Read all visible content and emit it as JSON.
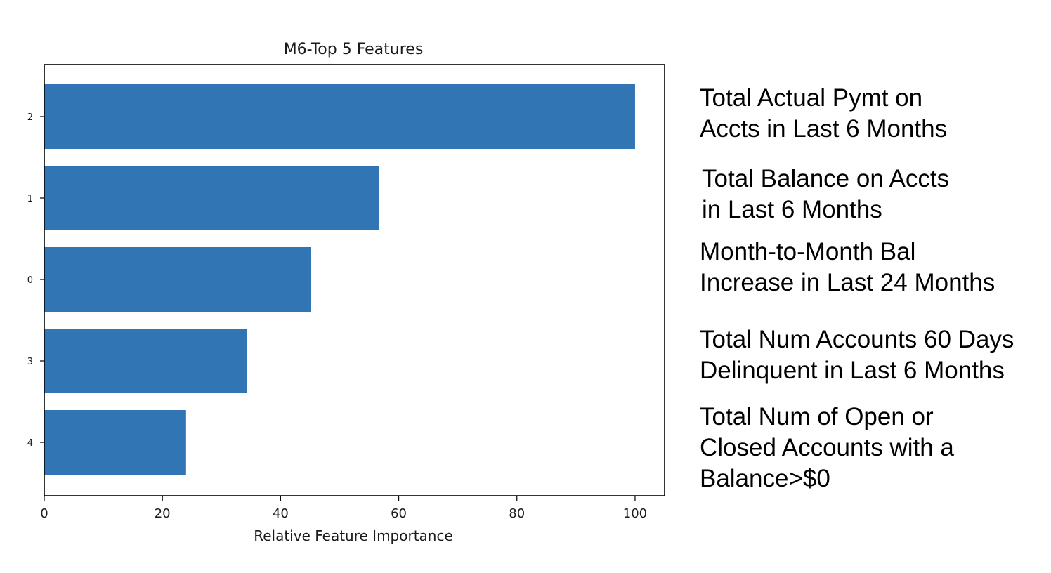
{
  "chart_data": {
    "type": "bar",
    "orientation": "horizontal",
    "title": "M6-Top 5 Features",
    "xlabel": "Relative Feature Importance",
    "ylabel": "",
    "xlim": [
      0,
      105
    ],
    "x_ticks": [
      0,
      20,
      40,
      60,
      80,
      100
    ],
    "categories": [
      "2",
      "1",
      "0",
      "3",
      "4"
    ],
    "values": [
      100,
      56.7,
      45.1,
      34.3,
      24.0
    ],
    "bar_color": "#3175b4",
    "grid": false,
    "legend": "none"
  },
  "annotations": [
    [
      "Total Actual Pymt on",
      "Accts in Last 6 Months"
    ],
    [
      "Total Balance on Accts",
      "in Last 6 Months"
    ],
    [
      "Month-to-Month Bal",
      "Increase in Last 24 Months"
    ],
    [
      "Total Num Accounts 60 Days",
      "Delinquent in Last 6 Months"
    ],
    [
      "Total Num of Open or",
      "Closed Accounts with a",
      "Balance>$0"
    ]
  ]
}
